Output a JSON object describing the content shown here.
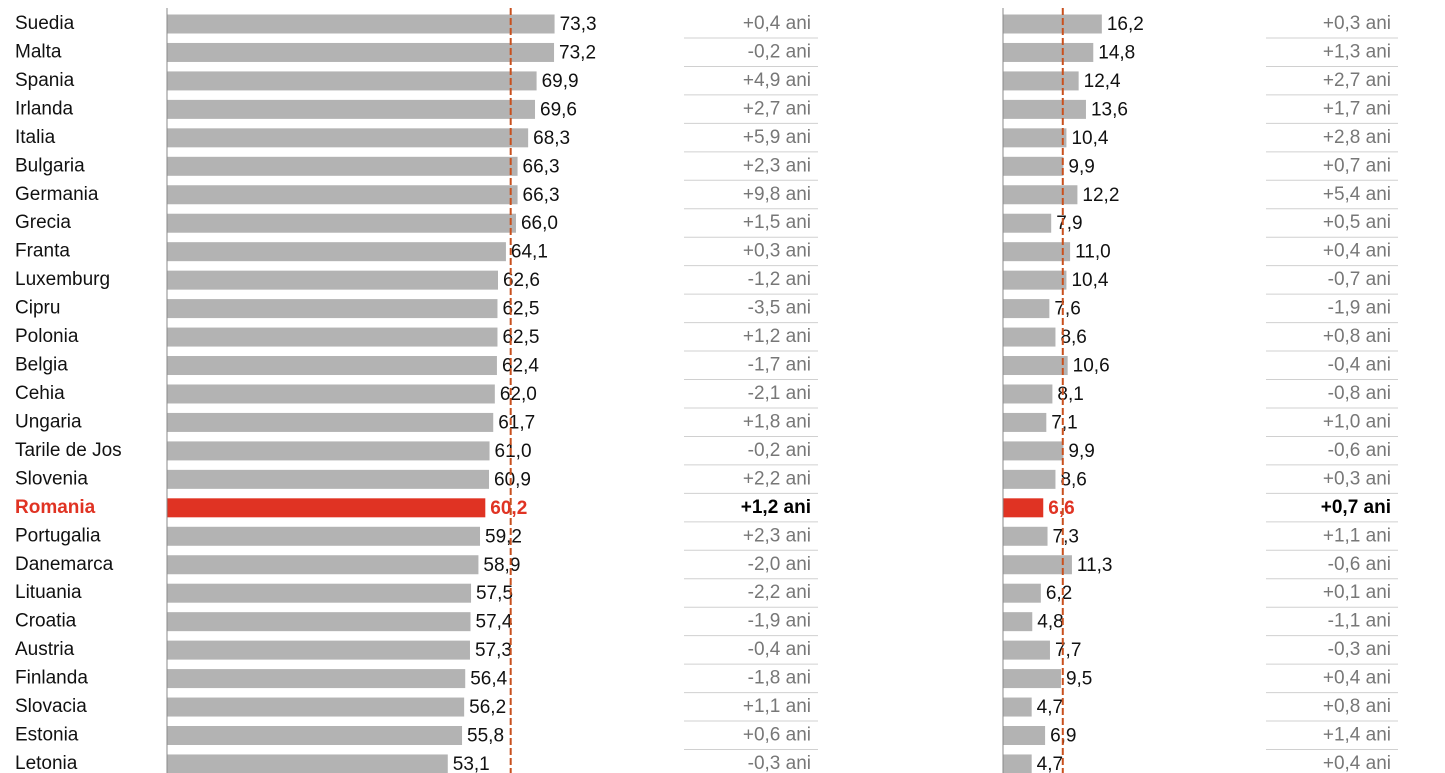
{
  "chart_data": [
    {
      "type": "bar",
      "categories": [
        "Suedia",
        "Malta",
        "Spania",
        "Irlanda",
        "Italia",
        "Bulgaria",
        "Germania",
        "Grecia",
        "Franta",
        "Luxemburg",
        "Cipru",
        "Polonia",
        "Belgia",
        "Cehia",
        "Ungaria",
        "Tarile de Jos",
        "Slovenia",
        "Romania",
        "Portugalia",
        "Danemarca",
        "Lituania",
        "Croatia",
        "Austria",
        "Finlanda",
        "Slovacia",
        "Estonia",
        "Letonia"
      ],
      "values": [
        73.3,
        73.2,
        69.9,
        69.6,
        68.3,
        66.3,
        66.3,
        66.0,
        64.1,
        62.6,
        62.5,
        62.5,
        62.4,
        62.0,
        61.7,
        61.0,
        60.9,
        60.2,
        59.2,
        58.9,
        57.5,
        57.4,
        57.3,
        56.4,
        56.2,
        55.8,
        53.1
      ],
      "value_labels": [
        "73,3",
        "73,2",
        "69,9",
        "69,6",
        "68,3",
        "66,3",
        "66,3",
        "66,0",
        "64,1",
        "62,6",
        "62,5",
        "62,5",
        "62,4",
        "62,0",
        "61,7",
        "61,0",
        "60,9",
        "60,2",
        "59,2",
        "58,9",
        "57,5",
        "57,4",
        "57,3",
        "56,4",
        "56,2",
        "55,8",
        "53,1"
      ],
      "changes": [
        0.4,
        -0.2,
        4.9,
        2.7,
        5.9,
        2.3,
        9.8,
        1.5,
        0.3,
        -1.2,
        -3.5,
        1.2,
        -1.7,
        -2.1,
        1.8,
        -0.2,
        2.2,
        1.2,
        2.3,
        -2.0,
        -2.2,
        -1.9,
        -0.4,
        -1.8,
        1.1,
        0.6,
        -0.3
      ],
      "change_labels": [
        "+0,4 ani",
        "-0,2 ani",
        "+4,9 ani",
        "+2,7 ani",
        "+5,9 ani",
        "+2,3 ani",
        "+9,8 ani",
        "+1,5 ani",
        "+0,3 ani",
        "-1,2 ani",
        "-3,5 ani",
        "+1,2 ani",
        "-1,7 ani",
        "-2,1 ani",
        "+1,8 ani",
        "-0,2 ani",
        "+2,2 ani",
        "+1,2 ani",
        "+2,3 ani",
        "-2,0 ani",
        "-2,2 ani",
        "-1,9 ani",
        "-0,4 ani",
        "-1,8 ani",
        "+1,1 ani",
        "+0,6 ani",
        "-0,3 ani"
      ],
      "xlim": [
        0,
        80
      ],
      "reference": 65.0,
      "color": "#b3b3b3",
      "highlight_index": 17,
      "highlight_color": "#e03323",
      "reference_color": "#c8501e"
    },
    {
      "type": "bar",
      "values": [
        16.2,
        14.8,
        12.4,
        13.6,
        10.4,
        9.9,
        12.2,
        7.9,
        11.0,
        10.4,
        7.6,
        8.6,
        10.6,
        8.1,
        7.1,
        9.9,
        8.6,
        6.6,
        7.3,
        11.3,
        6.2,
        4.8,
        7.7,
        9.5,
        4.7,
        6.9,
        4.7
      ],
      "value_labels": [
        "16,2",
        "14,8",
        "12,4",
        "13,6",
        "10,4",
        "9,9",
        "12,2",
        "7,9",
        "11,0",
        "10,4",
        "7,6",
        "8,6",
        "10,6",
        "8,1",
        "7,1",
        "9,9",
        "8,6",
        "6,6",
        "7,3",
        "11,3",
        "6,2",
        "4,8",
        "7,7",
        "9,5",
        "4,7",
        "6,9",
        "4,7"
      ],
      "changes": [
        0.3,
        1.3,
        2.7,
        1.7,
        2.8,
        0.7,
        5.4,
        0.5,
        0.4,
        -0.7,
        -1.9,
        0.8,
        -0.4,
        -0.8,
        1.0,
        -0.6,
        0.3,
        0.7,
        1.1,
        -0.6,
        0.1,
        -1.1,
        -0.3,
        0.4,
        0.8,
        1.4,
        0.4
      ],
      "change_labels": [
        "+0,3 ani",
        "+1,3 ani",
        "+2,7 ani",
        "+1,7 ani",
        "+2,8 ani",
        "+0,7 ani",
        "+5,4 ani",
        "+0,5 ani",
        "+0,4 ani",
        "-0,7 ani",
        "-1,9 ani",
        "+0,8 ani",
        "-0,4 ani",
        "-0,8 ani",
        "+1,0 ani",
        "-0,6 ani",
        "+0,3 ani",
        "+0,7 ani",
        "+1,1 ani",
        "-0,6 ani",
        "+0,1 ani",
        "-1,1 ani",
        "-0,3 ani",
        "+0,4 ani",
        "+0,8 ani",
        "+1,4 ani",
        "+0,4 ani"
      ],
      "xlim": [
        0,
        20
      ],
      "reference": 9.8,
      "color": "#b3b3b3",
      "highlight_index": 17,
      "highlight_color": "#e03323",
      "reference_color": "#c8501e"
    }
  ]
}
